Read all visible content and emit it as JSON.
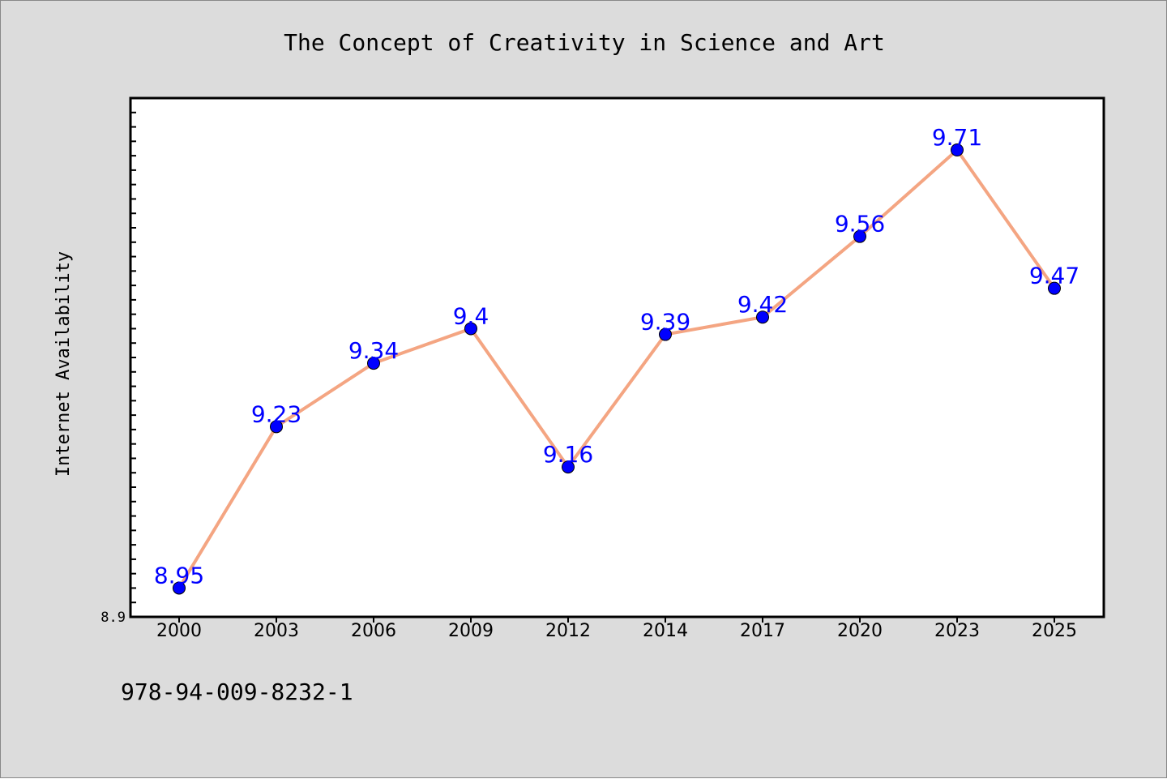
{
  "chart_data": {
    "type": "line",
    "title": "The Concept of Creativity in Science and Art",
    "xlabel": "",
    "ylabel": "Internet Availability",
    "categories": [
      "2000",
      "2003",
      "2006",
      "2009",
      "2012",
      "2014",
      "2017",
      "2020",
      "2023",
      "2025"
    ],
    "series": [
      {
        "values": [
          8.95,
          9.23,
          9.34,
          9.4,
          9.16,
          9.39,
          9.42,
          9.56,
          9.71,
          9.47
        ],
        "data_labels": [
          "8.95",
          "9.23",
          "9.34",
          "9.4",
          "9.16",
          "9.39",
          "9.42",
          "9.56",
          "9.71",
          "9.47"
        ]
      }
    ],
    "y_tick_labels": [
      "8.9"
    ],
    "ylim": [
      8.9,
      9.8
    ],
    "grid": false,
    "legend": "none",
    "colors": {
      "background": "#dcdcdc",
      "plot_background": "#ffffff",
      "line": "#f4a582",
      "marker": "#0000ff",
      "data_label": "#0000ff",
      "axis": "#000000"
    }
  },
  "footer": {
    "isbn": "978-94-009-8232-1"
  }
}
